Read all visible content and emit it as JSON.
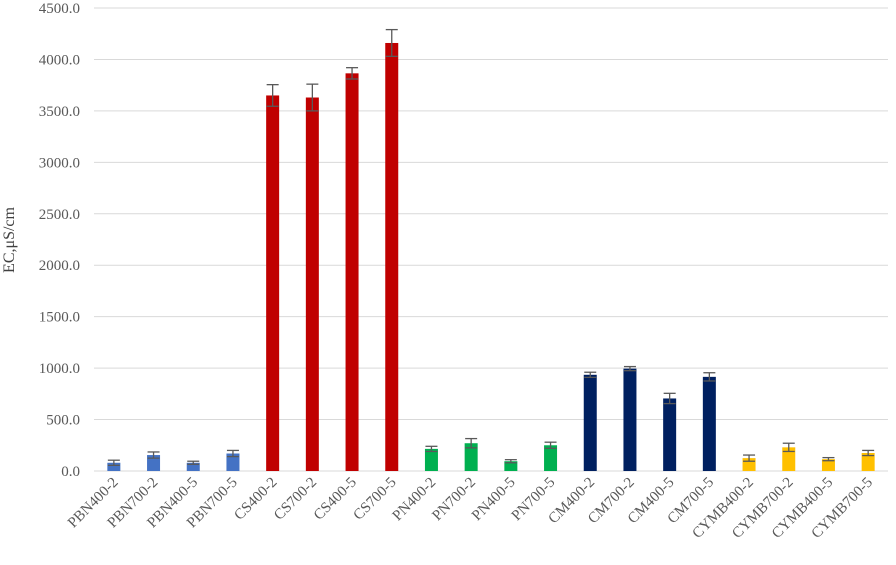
{
  "chart_data": {
    "type": "bar",
    "title": "",
    "xlabel": "",
    "ylabel": "EC,μS/cm",
    "ylim": [
      0,
      4500
    ],
    "yticks": [
      "0.0",
      "500.0",
      "1000.0",
      "1500.0",
      "2000.0",
      "2500.0",
      "3000.0",
      "3500.0",
      "4000.0",
      "4500.0"
    ],
    "grid": true,
    "legend": "none",
    "categories": [
      "PBN400-2",
      "PBN700-2",
      "PBN400-5",
      "PBN700-5",
      "CS400-2",
      "CS700-2",
      "CS400-5",
      "CS700-5",
      "PN400-2",
      "PN700-2",
      "PN400-5",
      "PN700-5",
      "CM400-2",
      "CM700-2",
      "CM400-5",
      "CM700-5",
      "CYMB400-2",
      "CYMB700-2",
      "CYMB400-5",
      "CYMB700-5"
    ],
    "values": [
      80,
      155,
      80,
      170,
      3650,
      3630,
      3865,
      4160,
      215,
      270,
      95,
      250,
      935,
      995,
      705,
      915,
      125,
      230,
      115,
      175
    ],
    "errors": [
      25,
      30,
      15,
      30,
      105,
      130,
      55,
      130,
      25,
      45,
      15,
      30,
      25,
      20,
      50,
      40,
      30,
      40,
      15,
      25
    ],
    "colors": [
      "#4472c4",
      "#4472c4",
      "#4472c4",
      "#4472c4",
      "#c00000",
      "#c00000",
      "#c00000",
      "#c00000",
      "#00b050",
      "#00b050",
      "#00b050",
      "#00b050",
      "#002060",
      "#002060",
      "#002060",
      "#002060",
      "#ffc000",
      "#ffc000",
      "#ffc000",
      "#ffc000"
    ]
  }
}
